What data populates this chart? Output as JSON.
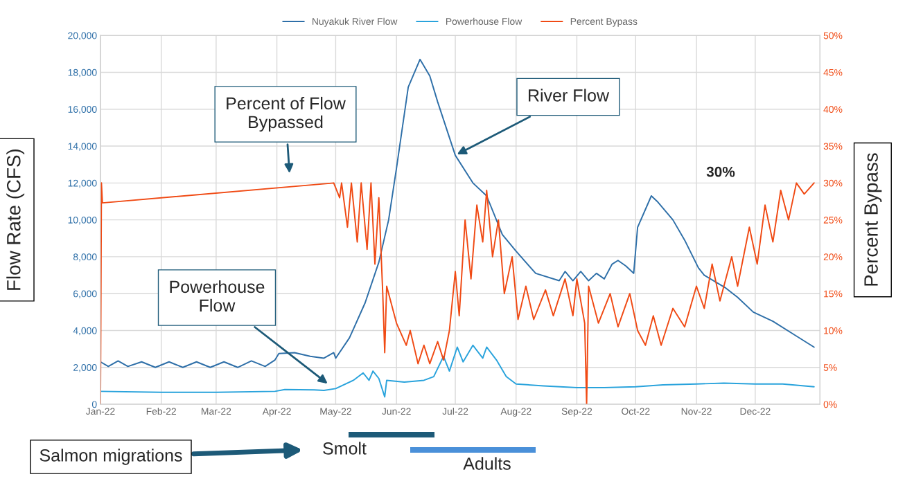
{
  "chart_data": {
    "type": "line",
    "x": [
      "2022-01-01",
      "2022-01-05",
      "2022-01-10",
      "2022-01-15",
      "2022-01-22",
      "2022-01-29",
      "2022-02-05",
      "2022-02-12",
      "2022-02-19",
      "2022-02-26",
      "2022-03-05",
      "2022-03-12",
      "2022-03-19",
      "2022-03-26",
      "2022-03-31",
      "2022-04-02",
      "2022-04-10",
      "2022-04-18",
      "2022-04-25",
      "2022-04-30",
      "2022-05-01",
      "2022-05-08",
      "2022-05-16",
      "2022-05-23",
      "2022-05-28",
      "2022-06-01",
      "2022-06-07",
      "2022-06-13",
      "2022-06-18",
      "2022-06-22",
      "2022-07-01",
      "2022-07-10",
      "2022-07-17",
      "2022-07-25",
      "2022-08-01",
      "2022-08-11",
      "2022-08-23",
      "2022-08-26",
      "2022-08-30",
      "2022-09-03",
      "2022-09-07",
      "2022-09-11",
      "2022-09-15",
      "2022-09-19",
      "2022-09-22",
      "2022-09-26",
      "2022-09-28",
      "2022-09-30",
      "2022-10-02",
      "2022-10-09",
      "2022-10-12",
      "2022-10-20",
      "2022-10-26",
      "2022-11-02",
      "2022-11-05",
      "2022-11-16",
      "2022-11-22",
      "2022-11-30",
      "2022-12-10",
      "2022-12-22",
      "2022-12-31"
    ],
    "series": [
      {
        "name": "Nuyakuk River Flow",
        "color": "#2e6fa8",
        "values": [
          2300,
          2050,
          2350,
          2050,
          2300,
          2000,
          2300,
          2000,
          2300,
          2000,
          2300,
          2000,
          2350,
          2050,
          2400,
          2750,
          2800,
          2600,
          2500,
          2800,
          2500,
          3600,
          5500,
          7700,
          10000,
          12800,
          17200,
          18700,
          17800,
          16400,
          13500,
          12000,
          11300,
          9200,
          8300,
          7100,
          6700,
          7200,
          6700,
          7200,
          6700,
          7100,
          6800,
          7600,
          7800,
          7500,
          7300,
          7100,
          9600,
          11300,
          11000,
          10000,
          8900,
          7400,
          7000,
          6300,
          5800,
          5000,
          4500,
          3700,
          3100
        ]
      },
      {
        "name": "Powerhouse Flow",
        "color": "#29a3dc",
        "x": [
          "2022-01-01",
          "2022-02-01",
          "2022-03-01",
          "2022-03-31",
          "2022-04-05",
          "2022-04-20",
          "2022-04-25",
          "2022-05-01",
          "2022-05-10",
          "2022-05-15",
          "2022-05-18",
          "2022-05-20",
          "2022-05-23",
          "2022-05-26",
          "2022-05-27",
          "2022-06-05",
          "2022-06-15",
          "2022-06-20",
          "2022-06-25",
          "2022-06-28",
          "2022-07-02",
          "2022-07-05",
          "2022-07-10",
          "2022-07-15",
          "2022-07-17",
          "2022-07-22",
          "2022-07-27",
          "2022-08-01",
          "2022-08-15",
          "2022-09-01",
          "2022-09-15",
          "2022-10-01",
          "2022-10-15",
          "2022-11-01",
          "2022-11-15",
          "2022-12-01",
          "2022-12-15",
          "2022-12-31"
        ],
        "values": [
          700,
          650,
          650,
          700,
          800,
          780,
          750,
          850,
          1300,
          1700,
          1300,
          1800,
          1400,
          400,
          1300,
          1200,
          1300,
          1500,
          2600,
          1800,
          3100,
          2300,
          3200,
          2500,
          3100,
          2400,
          1500,
          1100,
          1000,
          900,
          900,
          950,
          1050,
          1100,
          1150,
          1100,
          1100,
          950
        ]
      },
      {
        "name": "Percent Bypass",
        "color": "#f04a14",
        "axis": "y2",
        "x": [
          "2022-01-01",
          "2022-01-01T12:00",
          "2022-01-02",
          "2022-04-30",
          "2022-05-03",
          "2022-05-04",
          "2022-05-07",
          "2022-05-09",
          "2022-05-12",
          "2022-05-14",
          "2022-05-17",
          "2022-05-19",
          "2022-05-21",
          "2022-05-23",
          "2022-05-25",
          "2022-05-26",
          "2022-05-27",
          "2022-06-01",
          "2022-06-06",
          "2022-06-08",
          "2022-06-12",
          "2022-06-15",
          "2022-06-18",
          "2022-06-22",
          "2022-06-25",
          "2022-06-28",
          "2022-07-01",
          "2022-07-03",
          "2022-07-06",
          "2022-07-09",
          "2022-07-12",
          "2022-07-15",
          "2022-07-17",
          "2022-07-20",
          "2022-07-23",
          "2022-07-26",
          "2022-07-30",
          "2022-08-02",
          "2022-08-06",
          "2022-08-10",
          "2022-08-16",
          "2022-08-20",
          "2022-08-26",
          "2022-08-30",
          "2022-09-01",
          "2022-09-05",
          "2022-09-06",
          "2022-09-07",
          "2022-09-12",
          "2022-09-18",
          "2022-09-22",
          "2022-09-28",
          "2022-10-02",
          "2022-10-06",
          "2022-10-10",
          "2022-10-14",
          "2022-10-20",
          "2022-10-26",
          "2022-11-01",
          "2022-11-05",
          "2022-11-09",
          "2022-11-13",
          "2022-11-19",
          "2022-11-22",
          "2022-11-28",
          "2022-12-02",
          "2022-12-06",
          "2022-12-10",
          "2022-12-14",
          "2022-12-18",
          "2022-12-22",
          "2022-12-26",
          "2022-12-31"
        ],
        "values": [
          0,
          30,
          27.3,
          30,
          28,
          30,
          24,
          30,
          22,
          30,
          21,
          30,
          19,
          28,
          15,
          7,
          16,
          11,
          8,
          10,
          5.5,
          8,
          5.5,
          8.5,
          6,
          10,
          18,
          12,
          25,
          17,
          27,
          22,
          29,
          20,
          25,
          15,
          20,
          11.5,
          16,
          11.5,
          15.5,
          12,
          17,
          12,
          17,
          11,
          0,
          16,
          11,
          15,
          10.5,
          15,
          10,
          8,
          12,
          8,
          13,
          10.5,
          16,
          13,
          19,
          14,
          20,
          16,
          24,
          19,
          27,
          22,
          29,
          25,
          30,
          28.5,
          30
        ]
      }
    ],
    "xlim": [
      "2022-01-01",
      "2023-01-03"
    ],
    "xticks": [
      {
        "value": "2022-01-01",
        "label": "Jan-22"
      },
      {
        "value": "2022-02-01",
        "label": "Feb-22"
      },
      {
        "value": "2022-03-01",
        "label": "Mar-22"
      },
      {
        "value": "2022-04-01",
        "label": "Apr-22"
      },
      {
        "value": "2022-05-01",
        "label": "May-22"
      },
      {
        "value": "2022-06-01",
        "label": "Jun-22"
      },
      {
        "value": "2022-07-01",
        "label": "Jul-22"
      },
      {
        "value": "2022-08-01",
        "label": "Aug-22"
      },
      {
        "value": "2022-09-01",
        "label": "Sep-22"
      },
      {
        "value": "2022-10-01",
        "label": "Oct-22"
      },
      {
        "value": "2022-11-01",
        "label": "Nov-22"
      },
      {
        "value": "2022-12-01",
        "label": "Dec-22"
      }
    ],
    "ylim": [
      0,
      20000
    ],
    "yticks": [
      0,
      {
        "value": 2000,
        "label": "2,000"
      },
      {
        "value": 4000,
        "label": "4,000"
      },
      {
        "value": 6000,
        "label": "6,000"
      },
      {
        "value": 8000,
        "label": "8,000"
      },
      {
        "value": 10000,
        "label": "10,000"
      },
      {
        "value": 12000,
        "label": "12,000"
      },
      {
        "value": 14000,
        "label": "14,000"
      },
      {
        "value": 16000,
        "label": "16,000"
      },
      {
        "value": 18000,
        "label": "18,000"
      },
      {
        "value": 20000,
        "label": "20,000"
      }
    ],
    "y2lim": [
      0,
      50
    ],
    "y2ticks": [
      {
        "value": 0,
        "label": "0%"
      },
      {
        "value": 5,
        "label": "5%"
      },
      {
        "value": 10,
        "label": "10%"
      },
      {
        "value": 15,
        "label": "15%"
      },
      {
        "value": 20,
        "label": "20%"
      },
      {
        "value": 25,
        "label": "25%"
      },
      {
        "value": 30,
        "label": "30%"
      },
      {
        "value": 35,
        "label": "35%"
      },
      {
        "value": 40,
        "label": "40%"
      },
      {
        "value": 45,
        "label": "45%"
      },
      {
        "value": 50,
        "label": "50%"
      }
    ],
    "ylabel": "Flow Rate (CFS)",
    "y2label": "Percent Bypass",
    "grid": true,
    "legend": "top",
    "annotations": [
      "Percent of Flow\nBypassed",
      {
        "text": "River Flow",
        "x": "2022-07-01",
        "y": 13500
      },
      "Powerhouse\nFlow",
      "30%",
      "Salmon migrations",
      "Smolt",
      "Adults"
    ]
  }
}
